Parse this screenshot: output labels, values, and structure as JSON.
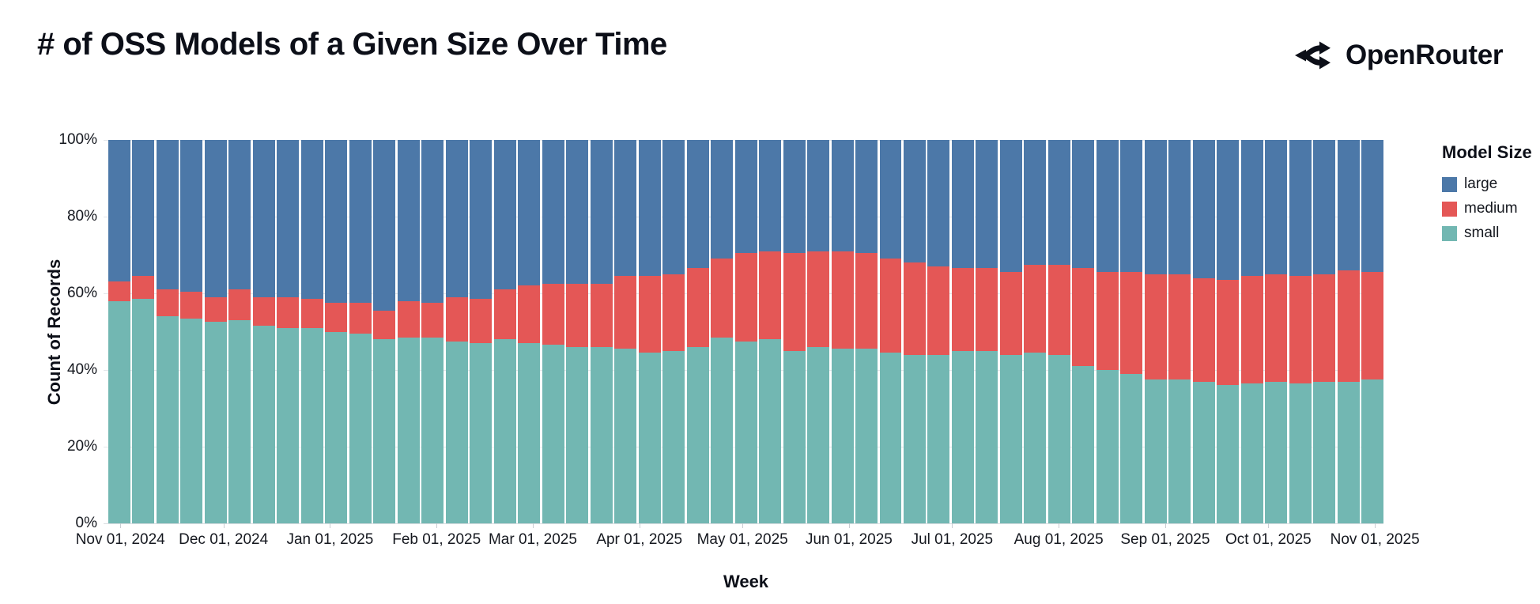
{
  "header": {
    "title": "# of OSS Models of a Given Size Over Time",
    "brand": "OpenRouter"
  },
  "legend": {
    "title": "Model Size",
    "items": [
      {
        "label": "large",
        "color": "#4c78a8"
      },
      {
        "label": "medium",
        "color": "#e45756"
      },
      {
        "label": "small",
        "color": "#72b7b2"
      }
    ]
  },
  "axes": {
    "x_title": "Week",
    "y_title": "Count of Records",
    "y_tick_labels": [
      "100%",
      "80%",
      "60%",
      "40%",
      "20%",
      "0%"
    ]
  },
  "chart_data": {
    "type": "bar",
    "variant": "stacked-normalized-100pct",
    "title": "# of OSS Models of a Given Size Over Time",
    "xlabel": "Week",
    "ylabel": "Count of Records",
    "ylim": [
      0,
      100
    ],
    "y_unit": "percent",
    "grid": true,
    "legend_position": "right",
    "bin": "weekly",
    "x_range": [
      "Nov 01, 2024",
      "Nov 01, 2025"
    ],
    "x_month_ticks": [
      {
        "label": "Nov 01, 2024",
        "day_offset": 0
      },
      {
        "label": "Dec 01, 2024",
        "day_offset": 30
      },
      {
        "label": "Jan 01, 2025",
        "day_offset": 61
      },
      {
        "label": "Feb 01, 2025",
        "day_offset": 92
      },
      {
        "label": "Mar 01, 2025",
        "day_offset": 120
      },
      {
        "label": "Apr 01, 2025",
        "day_offset": 151
      },
      {
        "label": "May 01, 2025",
        "day_offset": 181
      },
      {
        "label": "Jun 01, 2025",
        "day_offset": 212
      },
      {
        "label": "Jul 01, 2025",
        "day_offset": 242
      },
      {
        "label": "Aug 01, 2025",
        "day_offset": 273
      },
      {
        "label": "Sep 01, 2025",
        "day_offset": 304
      },
      {
        "label": "Oct 01, 2025",
        "day_offset": 334
      },
      {
        "label": "Nov 01, 2025",
        "day_offset": 365
      }
    ],
    "weeks": [
      "2024-11-01",
      "2024-11-08",
      "2024-11-15",
      "2024-11-22",
      "2024-11-29",
      "2024-12-06",
      "2024-12-13",
      "2024-12-20",
      "2024-12-27",
      "2025-01-03",
      "2025-01-10",
      "2025-01-17",
      "2025-01-24",
      "2025-01-31",
      "2025-02-07",
      "2025-02-14",
      "2025-02-21",
      "2025-02-28",
      "2025-03-07",
      "2025-03-14",
      "2025-03-21",
      "2025-03-28",
      "2025-04-04",
      "2025-04-11",
      "2025-04-18",
      "2025-04-25",
      "2025-05-02",
      "2025-05-09",
      "2025-05-16",
      "2025-05-23",
      "2025-05-30",
      "2025-06-06",
      "2025-06-13",
      "2025-06-20",
      "2025-06-27",
      "2025-07-04",
      "2025-07-11",
      "2025-07-18",
      "2025-07-25",
      "2025-08-01",
      "2025-08-08",
      "2025-08-15",
      "2025-08-22",
      "2025-08-29",
      "2025-09-05",
      "2025-09-12",
      "2025-09-19",
      "2025-09-26",
      "2025-10-03",
      "2025-10-10",
      "2025-10-17",
      "2025-10-24",
      "2025-10-31"
    ],
    "stack_order_bottom_to_top": [
      "small",
      "medium",
      "large"
    ],
    "series": [
      {
        "name": "small",
        "color": "#72b7b2",
        "values": [
          58,
          58.5,
          54,
          53.5,
          52.5,
          53,
          51.5,
          51,
          51,
          50,
          49.5,
          48,
          48.5,
          48.5,
          47.5,
          47,
          48,
          47,
          46.5,
          46,
          46,
          45.5,
          44.5,
          45,
          46,
          48.5,
          47.5,
          48,
          45,
          46,
          45.5,
          45.5,
          44.5,
          44,
          44,
          45,
          45,
          44,
          44.5,
          44,
          41,
          40,
          39,
          37.5,
          37.5,
          37,
          36,
          36.5,
          37,
          36.5,
          37,
          37,
          37.5
        ]
      },
      {
        "name": "medium",
        "color": "#e45756",
        "values": [
          5,
          6,
          7,
          7,
          6.5,
          8,
          7.5,
          8,
          7.5,
          7.5,
          8,
          7.5,
          9.5,
          9,
          11.5,
          11.5,
          13,
          15,
          16,
          16.5,
          16.5,
          19,
          20,
          20,
          20.5,
          20.5,
          23,
          23,
          25.5,
          25,
          25.5,
          25,
          24.5,
          24,
          23,
          21.5,
          21.5,
          21.5,
          23,
          23.5,
          25.5,
          25.5,
          26.5,
          27.5,
          27.5,
          27,
          27.5,
          28,
          28,
          28,
          28,
          29,
          28
        ]
      },
      {
        "name": "large",
        "color": "#4c78a8",
        "values": [
          37,
          35.5,
          39,
          39.5,
          41,
          39,
          41,
          41,
          41.5,
          42.5,
          42.5,
          44.5,
          42,
          42.5,
          41,
          41.5,
          39,
          38,
          37.5,
          37.5,
          37.5,
          35.5,
          35.5,
          35,
          33.5,
          31,
          29.5,
          29,
          29.5,
          29,
          29,
          29.5,
          31,
          32,
          33,
          33.5,
          33.5,
          34.5,
          32.5,
          32.5,
          33.5,
          34.5,
          34.5,
          35,
          35,
          36,
          36.5,
          35.5,
          35,
          35.5,
          35,
          34,
          34.5
        ]
      }
    ]
  }
}
